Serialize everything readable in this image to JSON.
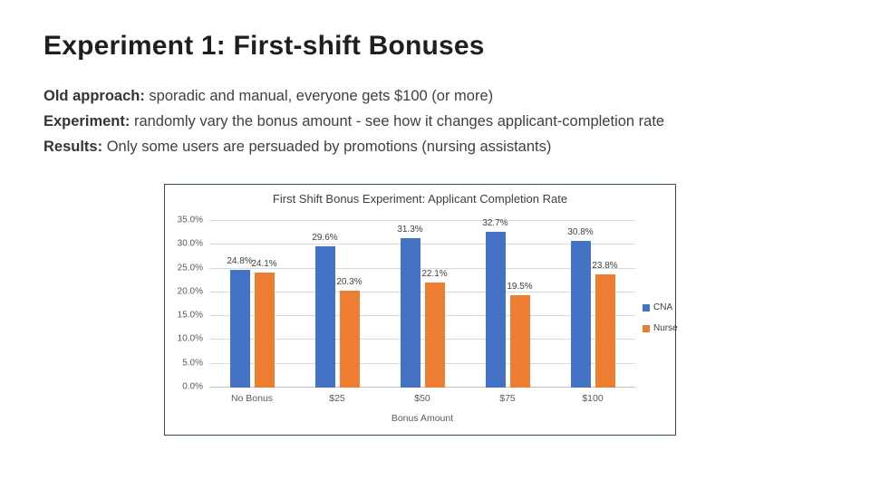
{
  "slide": {
    "title": "Experiment 1: First-shift Bonuses",
    "bullets": [
      {
        "label": "Old approach:",
        "text": " sporadic and manual, everyone gets $100 (or more)"
      },
      {
        "label": "Experiment:",
        "text": " randomly vary the bonus amount - see how it changes applicant-completion rate"
      },
      {
        "label": "Results:",
        "text": " Only some users are persuaded by promotions (nursing assistants)"
      }
    ]
  },
  "chart_data": {
    "type": "bar",
    "title": "First Shift Bonus Experiment: Applicant Completion Rate",
    "categories": [
      "No Bonus",
      "$25",
      "$50",
      "$75",
      "$100"
    ],
    "series": [
      {
        "name": "CNA",
        "color": "#4472C4",
        "values": [
          24.8,
          29.6,
          31.3,
          32.7,
          30.8
        ]
      },
      {
        "name": "Nurse",
        "color": "#ED7D31",
        "values": [
          24.1,
          20.3,
          22.1,
          19.5,
          23.8
        ]
      }
    ],
    "xlabel": "Bonus Amount",
    "ylabel": "",
    "ylim": [
      0,
      35
    ],
    "ytick_step": 5,
    "yticks": [
      "0.0%",
      "5.0%",
      "10.0%",
      "15.0%",
      "20.0%",
      "25.0%",
      "30.0%",
      "35.0%"
    ],
    "data_label_format": "percent1",
    "grid": true,
    "legend_position": "right",
    "colors": {
      "chart_border": "#2a4f5e",
      "gridline": "#d9d9d9",
      "text": "#404040",
      "axis_text": "#595959"
    }
  }
}
